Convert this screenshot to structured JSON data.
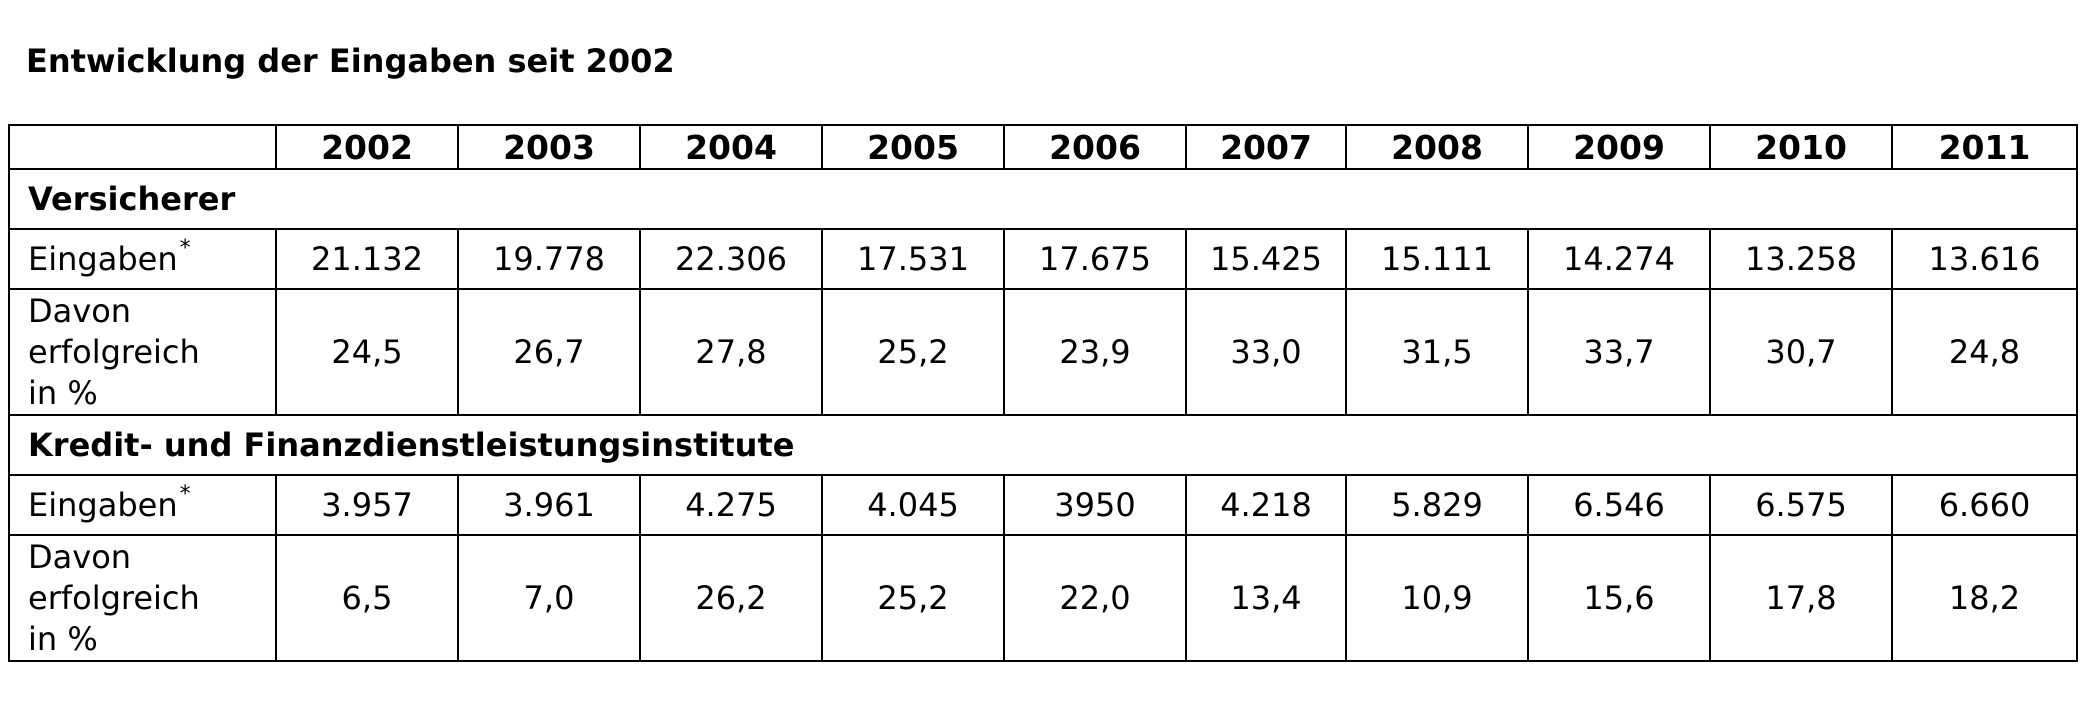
{
  "title": "Entwicklung der Eingaben seit 2002",
  "years": [
    "2002",
    "2003",
    "2004",
    "2005",
    "2006",
    "2007",
    "2008",
    "2009",
    "2010",
    "2011"
  ],
  "footnote_mark": "*",
  "sections": [
    {
      "name": "Versicherer",
      "eingaben_label": "Eingaben",
      "eingaben": [
        "21.132",
        "19.778",
        "22.306",
        "17.531",
        "17.675",
        "15.425",
        "15.111",
        "14.274",
        "13.258",
        "13.616"
      ],
      "erfolgreich_label": [
        "Davon",
        "erfolgreich",
        "in %"
      ],
      "erfolgreich": [
        "24,5",
        "26,7",
        "27,8",
        "25,2",
        "23,9",
        "33,0",
        "31,5",
        "33,7",
        "30,7",
        "24,8"
      ]
    },
    {
      "name": "Kredit- und Finanzdienstleistungsinstitute",
      "eingaben_label": "Eingaben",
      "eingaben": [
        "3.957",
        "3.961",
        "4.275",
        "4.045",
        "3950",
        "4.218",
        "5.829",
        "6.546",
        "6.575",
        "6.660"
      ],
      "erfolgreich_label": [
        "Davon",
        "erfolgreich",
        "in %"
      ],
      "erfolgreich": [
        "6,5",
        "7,0",
        "26,2",
        "25,2",
        "22,0",
        "13,4",
        "10,9",
        "15,6",
        "17,8",
        "18,2"
      ]
    }
  ]
}
